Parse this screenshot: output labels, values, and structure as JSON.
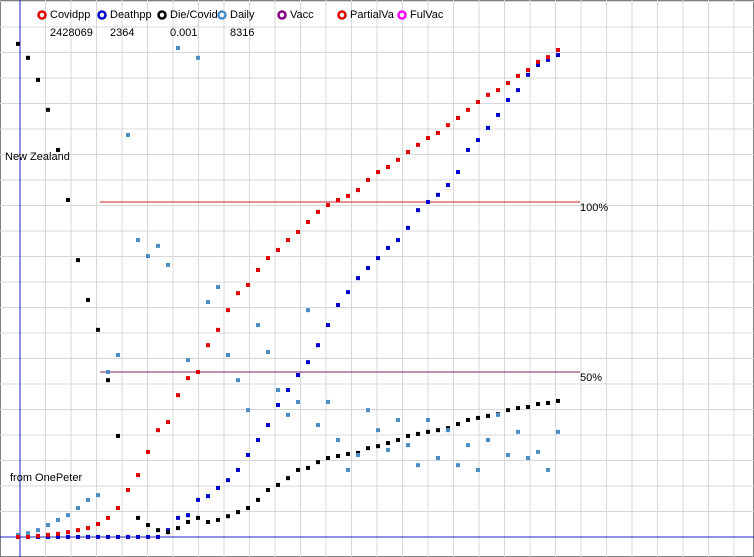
{
  "chart_data": {
    "type": "scatter",
    "annotations": [
      "New Zealand",
      "from OnePeter"
    ],
    "x": [
      0,
      1,
      2,
      3,
      4,
      5,
      6,
      7,
      8,
      9,
      10,
      11,
      12,
      13,
      14,
      15,
      16,
      17,
      18,
      19,
      20,
      21,
      22,
      23,
      24,
      25,
      26,
      27,
      28,
      29,
      30,
      31,
      32,
      33,
      34,
      35,
      36,
      37,
      38,
      39,
      40,
      41,
      42,
      43,
      44,
      45,
      46,
      47,
      48,
      49,
      50,
      51,
      52,
      53,
      54
    ],
    "xlim": [
      -1.8,
      73.6
    ],
    "ylim": [
      -4.4,
      159.4
    ],
    "reference_lines": [
      {
        "value": 100,
        "label": "100%",
        "color": "#cc2020"
      },
      {
        "value": 50,
        "label": "50%",
        "color": "#802060"
      }
    ],
    "series": [
      {
        "name": "Covidpp",
        "color": "#e00000",
        "latest": 2428069,
        "values": [
          null,
          null,
          null,
          null,
          null,
          null,
          null,
          null,
          null,
          null,
          null,
          null,
          null,
          null,
          null,
          null,
          null,
          null,
          null,
          null,
          null,
          null,
          null,
          null,
          null,
          null,
          null,
          null,
          null,
          null,
          null,
          null,
          null,
          null,
          null,
          null,
          null,
          null,
          null,
          null,
          null,
          null,
          null,
          null,
          null,
          null,
          null,
          null,
          null,
          null,
          null,
          null,
          null,
          null,
          null
        ]
      },
      {
        "name": "Deathpp",
        "color": "#0000cc",
        "latest": 2364,
        "values": [
          1.5,
          1.5,
          1.5,
          1.5,
          1.5,
          1.5,
          1.5,
          1.5,
          1.5,
          1.5,
          1.5,
          1.5,
          1.5,
          1.5,
          1.5,
          3.5,
          7.1,
          7.9,
          12.4,
          13.5,
          15.9,
          18.2,
          21.2,
          25.6,
          30,
          34.4,
          40.3,
          44.7,
          49.1,
          52.9,
          57.9,
          63.8,
          69.7,
          73.5,
          77.6,
          80.6,
          83.5,
          86.5,
          88.8,
          92.4,
          97.6,
          100,
          102.1,
          105,
          108.8,
          115.3,
          118.2,
          121.8,
          125.6,
          130,
          132.9,
          137.4,
          140.3,
          141.8,
          143.2
        ]
      },
      {
        "name": "Die/Covid",
        "color": "#000000",
        "latest": 0.001,
        "values": [
          146.5,
          142.4,
          135.9,
          127.1,
          115.3,
          100.6,
          82.9,
          71.2,
          62.4,
          47.6,
          31.2,
          15.3,
          7.1,
          5,
          3.5,
          2.9,
          4.1,
          5.9,
          7.1,
          5.9,
          6.5,
          7.6,
          8.8,
          10,
          12.4,
          15.3,
          16.8,
          18.8,
          21.2,
          21.8,
          23.5,
          24.7,
          25.3,
          25.9,
          26.2,
          27.6,
          28.2,
          29.1,
          30,
          31.2,
          31.8,
          32.4,
          32.9,
          33.5,
          34.7,
          35.9,
          36.5,
          37.1,
          37.6,
          38.8,
          39.4,
          39.7,
          40.6,
          40.9,
          41.5
        ]
      },
      {
        "name": "Daily",
        "color": "#4a8cc4",
        "latest": 8316,
        "values": [
          2.1,
          2.6,
          3.5,
          5,
          6.5,
          7.9,
          10,
          12.4,
          13.8,
          50,
          55,
          119.7,
          88.8,
          84.1,
          87.1,
          81.5,
          145.3,
          53.5,
          142.4,
          70.6,
          75,
          55,
          47.6,
          38.8,
          63.8,
          55.9,
          44.7,
          37.4,
          41.2,
          68.2,
          34.4,
          41.2,
          30,
          21.2,
          25.6,
          38.8,
          32.9,
          27.1,
          35.9,
          28.5,
          22.6,
          35.9,
          24.7,
          32.9,
          22.6,
          28.5,
          21.2,
          30,
          37.4,
          25.6,
          32.4,
          24.7,
          26.5,
          21.2,
          32.4
        ]
      },
      {
        "name": "Vacc",
        "color": "#800080",
        "values": [
          null,
          null,
          null,
          null,
          null,
          null,
          null,
          null,
          null,
          null,
          null,
          null,
          null,
          null,
          null,
          null,
          null,
          null,
          null,
          null,
          null,
          null,
          null,
          null,
          null,
          null,
          null,
          null,
          null,
          null,
          null,
          null,
          null,
          null,
          null,
          null,
          null,
          null,
          null,
          null,
          null,
          null,
          null,
          null,
          null,
          null,
          null,
          null,
          null,
          null,
          null,
          null,
          null,
          null,
          null
        ]
      },
      {
        "name": "PartialVa",
        "color": "#e00000",
        "values": [
          1.5,
          1.5,
          1.8,
          2.1,
          2.4,
          2.9,
          3.5,
          4.1,
          5.3,
          7.1,
          10,
          15.3,
          19.7,
          26.5,
          32.9,
          35.3,
          43.2,
          48.2,
          50,
          57.9,
          62.4,
          68.2,
          73.2,
          75.6,
          80,
          83.5,
          85.9,
          88.8,
          91.2,
          94.1,
          97.1,
          99.1,
          100.6,
          101.8,
          103.5,
          106.5,
          108.8,
          110.3,
          112.4,
          114.7,
          116.8,
          118.8,
          120.3,
          122.6,
          124.7,
          127.1,
          129.4,
          131.5,
          132.9,
          135,
          137.1,
          138.8,
          141.2,
          142.6,
          144.7
        ]
      },
      {
        "name": "FulVac",
        "color": "#ff00ff",
        "values": [
          null,
          null,
          null,
          null,
          null,
          null,
          null,
          null,
          null,
          null,
          null,
          null,
          null,
          null,
          null,
          null,
          null,
          null,
          null,
          null,
          null,
          null,
          null,
          null,
          null,
          null,
          null,
          null,
          null,
          null,
          null,
          null,
          null,
          null,
          null,
          null,
          null,
          null,
          null,
          null,
          null,
          null,
          null,
          null,
          null,
          null,
          null,
          null,
          null,
          null,
          null,
          null,
          null,
          null,
          null
        ]
      }
    ]
  }
}
